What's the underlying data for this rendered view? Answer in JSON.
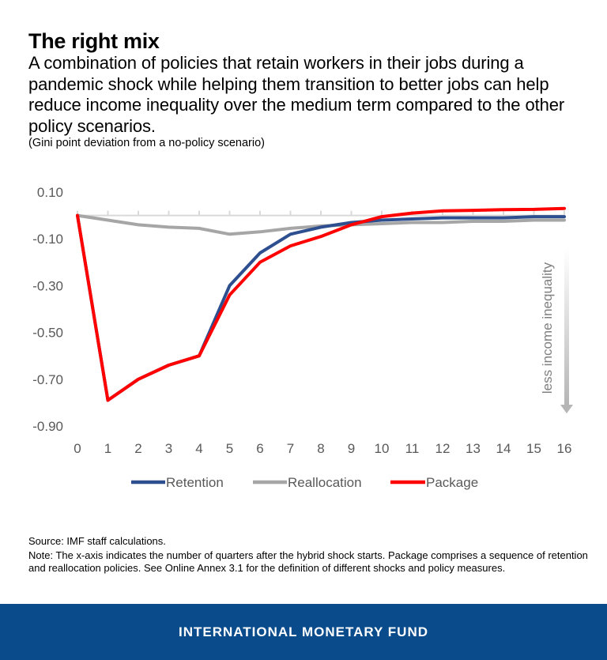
{
  "chart_data": {
    "type": "line",
    "title": "The right mix",
    "subtitle": "A combination of policies that retain workers in their jobs during a pandemic shock while helping them transition to better jobs can help reduce income inequality over the medium term compared to the other policy scenarios.",
    "ylabel": "(Gini point deviation from a no-policy scenario)",
    "xlabel": "",
    "x": [
      0,
      1,
      2,
      3,
      4,
      5,
      6,
      7,
      8,
      9,
      10,
      11,
      12,
      13,
      14,
      15,
      16
    ],
    "y_ticks": [
      "0.10",
      "-0.10",
      "-0.30",
      "-0.50",
      "-0.70",
      "-0.90"
    ],
    "ylim": [
      -0.9,
      0.1
    ],
    "series": [
      {
        "name": "Retention",
        "color": "#2e4f8f",
        "values": [
          0.0,
          -0.79,
          -0.7,
          -0.64,
          -0.6,
          -0.3,
          -0.16,
          -0.08,
          -0.05,
          -0.03,
          -0.02,
          -0.015,
          -0.01,
          -0.01,
          -0.01,
          -0.005,
          -0.005
        ]
      },
      {
        "name": "Reallocation",
        "color": "#a6a6a6",
        "values": [
          0.0,
          -0.02,
          -0.04,
          -0.05,
          -0.055,
          -0.08,
          -0.07,
          -0.055,
          -0.045,
          -0.04,
          -0.035,
          -0.03,
          -0.03,
          -0.025,
          -0.025,
          -0.02,
          -0.02
        ]
      },
      {
        "name": "Package",
        "color": "#ff0000",
        "values": [
          0.0,
          -0.79,
          -0.7,
          -0.64,
          -0.6,
          -0.34,
          -0.2,
          -0.13,
          -0.09,
          -0.04,
          -0.005,
          0.01,
          0.02,
          0.022,
          0.025,
          0.026,
          0.03
        ]
      }
    ],
    "annotation": "less income inequality",
    "legend_position": "bottom"
  },
  "header": {
    "title": "The right mix",
    "subtitle": "A combination of policies that retain workers in their jobs during a pandemic shock while helping them transition to better jobs can help reduce income inequality over the medium term compared to the other policy scenarios.",
    "unit_label": "(Gini point deviation from a no-policy scenario)"
  },
  "notes": {
    "source": "Source: IMF staff calculations.",
    "note": "Note: The x-axis indicates the number of quarters after the hybrid shock starts. Package comprises a sequence of retention and reallocation policies. See Online Annex 3.1 for the definition of different shocks and policy measures."
  },
  "footer": {
    "brand": "INTERNATIONAL MONETARY FUND",
    "background_color": "#0a4b8c"
  }
}
